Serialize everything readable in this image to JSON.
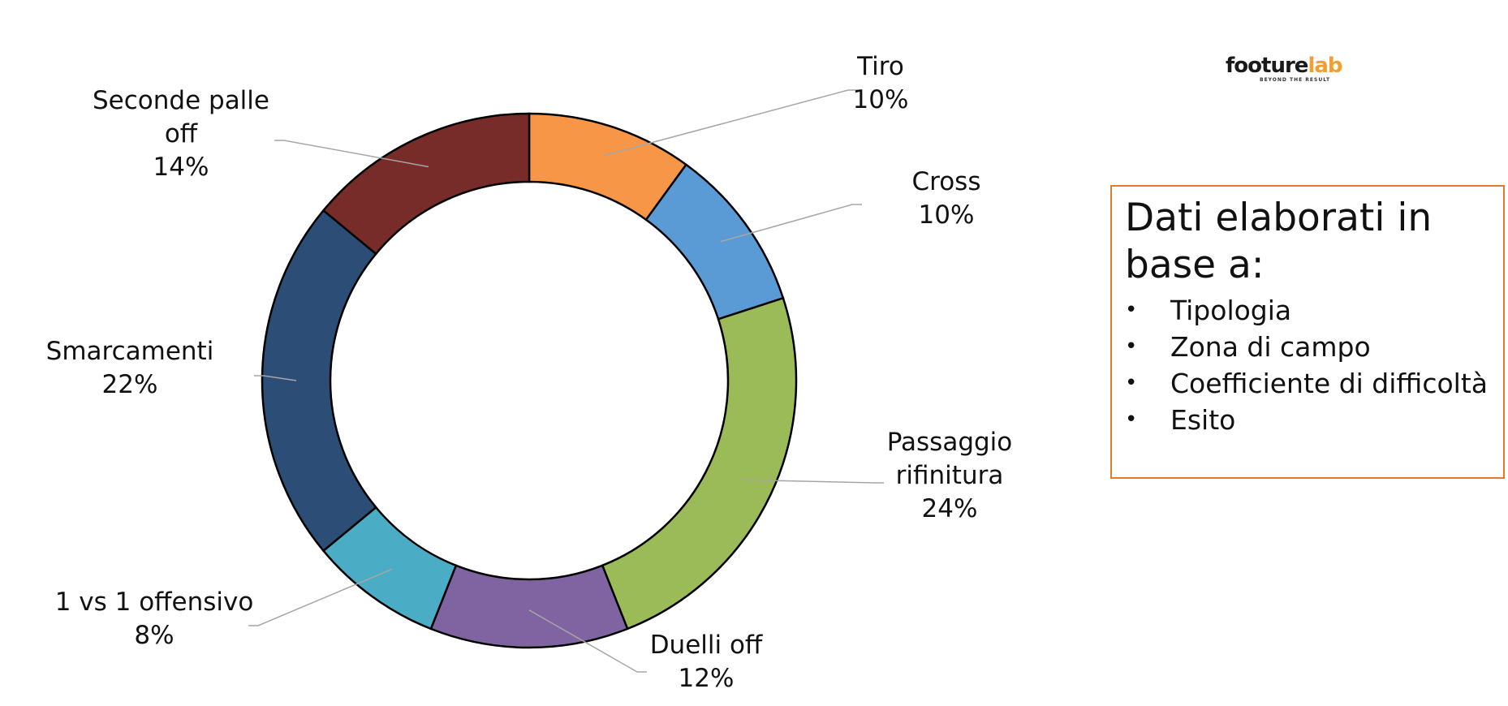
{
  "logo": {
    "word_dark": "footure",
    "word_accent": "lab",
    "tagline": "BEYOND THE RESULT"
  },
  "info_box": {
    "title_line1": "Dati elaborati in",
    "title_line2": "base a:",
    "items": [
      "Tipologia",
      "Zona di campo",
      "Coefficiente di difficoltà",
      "Esito"
    ]
  },
  "chart_data": {
    "type": "pie",
    "variant": "donut",
    "start": "top",
    "direction": "clockwise",
    "legend": "none",
    "title": "",
    "slices": [
      {
        "name": "Tiro",
        "label_lines": [
          "Tiro"
        ],
        "value": 10,
        "value_label": "10%",
        "color": "#f79646"
      },
      {
        "name": "Cross",
        "label_lines": [
          "Cross"
        ],
        "value": 10,
        "value_label": "10%",
        "color": "#5b9bd5"
      },
      {
        "name": "Passaggio rifinitura",
        "label_lines": [
          "Passaggio",
          "rifinitura"
        ],
        "value": 24,
        "value_label": "24%",
        "color": "#9bbb59"
      },
      {
        "name": "Duelli off",
        "label_lines": [
          "Duelli off"
        ],
        "value": 12,
        "value_label": "12%",
        "color": "#8064a2"
      },
      {
        "name": "1 vs 1 offensivo",
        "label_lines": [
          "1 vs 1 offensivo"
        ],
        "value": 8,
        "value_label": "8%",
        "color": "#4bacc6"
      },
      {
        "name": "Smarcamenti",
        "label_lines": [
          "Smarcamenti"
        ],
        "value": 22,
        "value_label": "22%",
        "color": "#2c4d75"
      },
      {
        "name": "Seconde palle off",
        "label_lines": [
          "Seconde palle",
          "off"
        ],
        "value": 14,
        "value_label": "14%",
        "color": "#772c2a"
      }
    ]
  }
}
